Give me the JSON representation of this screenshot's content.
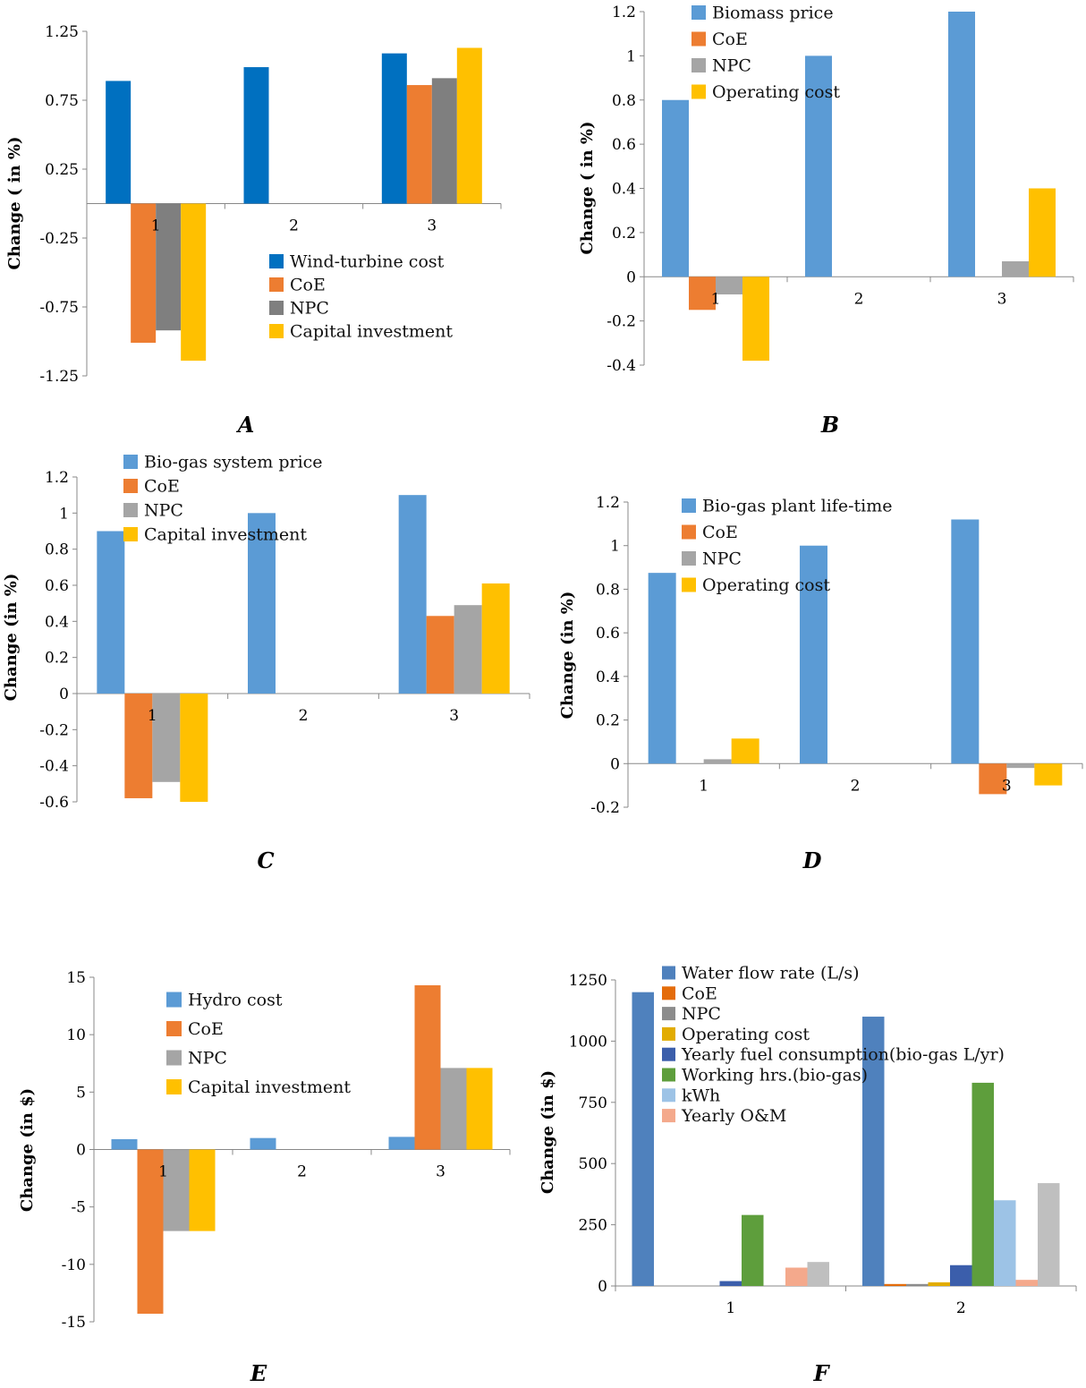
{
  "chart_data": [
    {
      "panel": "A",
      "type": "bar",
      "ylabel": "Change ( in %)",
      "ylim": [
        -1.25,
        1.25
      ],
      "yticks": [
        "-1.25",
        "-0.75",
        "-0.25",
        "0.25",
        "0.75",
        "1.25"
      ],
      "categories": [
        "1",
        "2",
        "3"
      ],
      "legend_position": "lower-right",
      "series": [
        {
          "name": "Wind-turbine cost",
          "color": "#0070C0",
          "values": [
            0.89,
            0.99,
            1.09
          ]
        },
        {
          "name": "CoE",
          "color": "#ED7D31",
          "values": [
            -1.01,
            null,
            0.86
          ]
        },
        {
          "name": "NPC",
          "color": "#7F7F7F",
          "values": [
            -0.92,
            null,
            0.91
          ]
        },
        {
          "name": "Capital investment",
          "color": "#FFC000",
          "values": [
            -1.14,
            null,
            1.13
          ]
        }
      ]
    },
    {
      "panel": "B",
      "type": "bar",
      "ylabel": "Change ( in %)",
      "ylim": [
        -0.4,
        1.2
      ],
      "yticks": [
        "-0.4",
        "-0.2",
        "0",
        "0.2",
        "0.4",
        "0.6",
        "0.8",
        "1",
        "1.2"
      ],
      "categories": [
        "1",
        "2",
        "3"
      ],
      "legend_position": "top-left",
      "series": [
        {
          "name": "Biomass price",
          "color": "#5B9BD5",
          "values": [
            0.8,
            1.0,
            1.2
          ]
        },
        {
          "name": "CoE",
          "color": "#ED7D31",
          "values": [
            -0.15,
            null,
            null
          ]
        },
        {
          "name": "NPC",
          "color": "#A5A5A5",
          "values": [
            -0.08,
            null,
            0.07
          ]
        },
        {
          "name": "Operating cost",
          "color": "#FFC000",
          "values": [
            -0.38,
            null,
            0.4
          ]
        }
      ]
    },
    {
      "panel": "C",
      "type": "bar",
      "ylabel": "Change (in %)",
      "ylim": [
        -0.6,
        1.2
      ],
      "yticks": [
        "-0.6",
        "-0.4",
        "-0.2",
        "0",
        "0.2",
        "0.4",
        "0.6",
        "0.8",
        "1",
        "1.2"
      ],
      "categories": [
        "1",
        "2",
        "3"
      ],
      "legend_position": "top-left",
      "series": [
        {
          "name": "Bio-gas system price",
          "color": "#5B9BD5",
          "values": [
            0.9,
            1.0,
            1.1
          ]
        },
        {
          "name": "CoE",
          "color": "#ED7D31",
          "values": [
            -0.58,
            null,
            0.43
          ]
        },
        {
          "name": "NPC",
          "color": "#A5A5A5",
          "values": [
            -0.49,
            null,
            0.49
          ]
        },
        {
          "name": "Capital investment",
          "color": "#FFC000",
          "values": [
            -0.6,
            null,
            0.61
          ]
        }
      ]
    },
    {
      "panel": "D",
      "type": "bar",
      "ylabel": "Change (in %)",
      "ylim": [
        -0.2,
        1.2
      ],
      "yticks": [
        "-0.2",
        "0",
        "0.2",
        "0.4",
        "0.6",
        "0.8",
        "1",
        "1.2"
      ],
      "categories": [
        "1",
        "2",
        "3"
      ],
      "legend_position": "top-left",
      "series": [
        {
          "name": "Bio-gas plant life-time",
          "color": "#5B9BD5",
          "values": [
            0.875,
            1.0,
            1.12
          ]
        },
        {
          "name": "CoE",
          "color": "#ED7D31",
          "values": [
            null,
            null,
            -0.14
          ]
        },
        {
          "name": "NPC",
          "color": "#A5A5A5",
          "values": [
            0.02,
            null,
            -0.02
          ]
        },
        {
          "name": "Operating cost",
          "color": "#FFC000",
          "values": [
            0.115,
            null,
            -0.1
          ]
        }
      ]
    },
    {
      "panel": "E",
      "type": "bar",
      "ylabel": "Change (in $)",
      "ylim": [
        -15,
        15
      ],
      "yticks": [
        "-15",
        "-10",
        "-5",
        "0",
        "5",
        "10",
        "15"
      ],
      "categories": [
        "1",
        "2",
        "3"
      ],
      "legend_position": "top-left",
      "series": [
        {
          "name": "Hydro cost",
          "color": "#5B9BD5",
          "values": [
            0.9,
            1.0,
            1.1
          ]
        },
        {
          "name": "CoE",
          "color": "#ED7D31",
          "values": [
            -14.3,
            null,
            14.3
          ]
        },
        {
          "name": "NPC",
          "color": "#A5A5A5",
          "values": [
            -7.1,
            null,
            7.1
          ]
        },
        {
          "name": "Capital investment",
          "color": "#FFC000",
          "values": [
            -7.1,
            null,
            7.1
          ]
        }
      ]
    },
    {
      "panel": "F",
      "type": "bar",
      "ylabel": "Change (in $)",
      "ylim": [
        0,
        1250
      ],
      "yticks": [
        "0",
        "250",
        "500",
        "750",
        "1000",
        "1250"
      ],
      "categories": [
        "1",
        "2"
      ],
      "legend_position": "top-left",
      "series": [
        {
          "name": "Water flow rate (L/s)",
          "color": "#4F81BD",
          "values": [
            1200,
            1100
          ]
        },
        {
          "name": "CoE",
          "color": "#E46C0A",
          "values": [
            null,
            8
          ]
        },
        {
          "name": "NPC",
          "color": "#8C8C8C",
          "values": [
            null,
            8
          ]
        },
        {
          "name": "Operating cost",
          "color": "#E2AC00",
          "values": [
            null,
            15
          ]
        },
        {
          "name": "Yearly fuel consumption(bio-gas L/yr)",
          "color": "#3B5EAB",
          "values": [
            20,
            85
          ]
        },
        {
          "name": "Working hrs.(bio-gas)",
          "color": "#5E9E3C",
          "values": [
            290,
            830
          ]
        },
        {
          "name": "kWh",
          "color": "#9DC3E6",
          "values": [
            null,
            350
          ]
        },
        {
          "name": "Yearly O&M",
          "color": "#F4A98C",
          "values": [
            75,
            25
          ]
        },
        {
          "name": "",
          "color": "#BFBFBF",
          "values": [
            98,
            420
          ]
        }
      ]
    }
  ]
}
